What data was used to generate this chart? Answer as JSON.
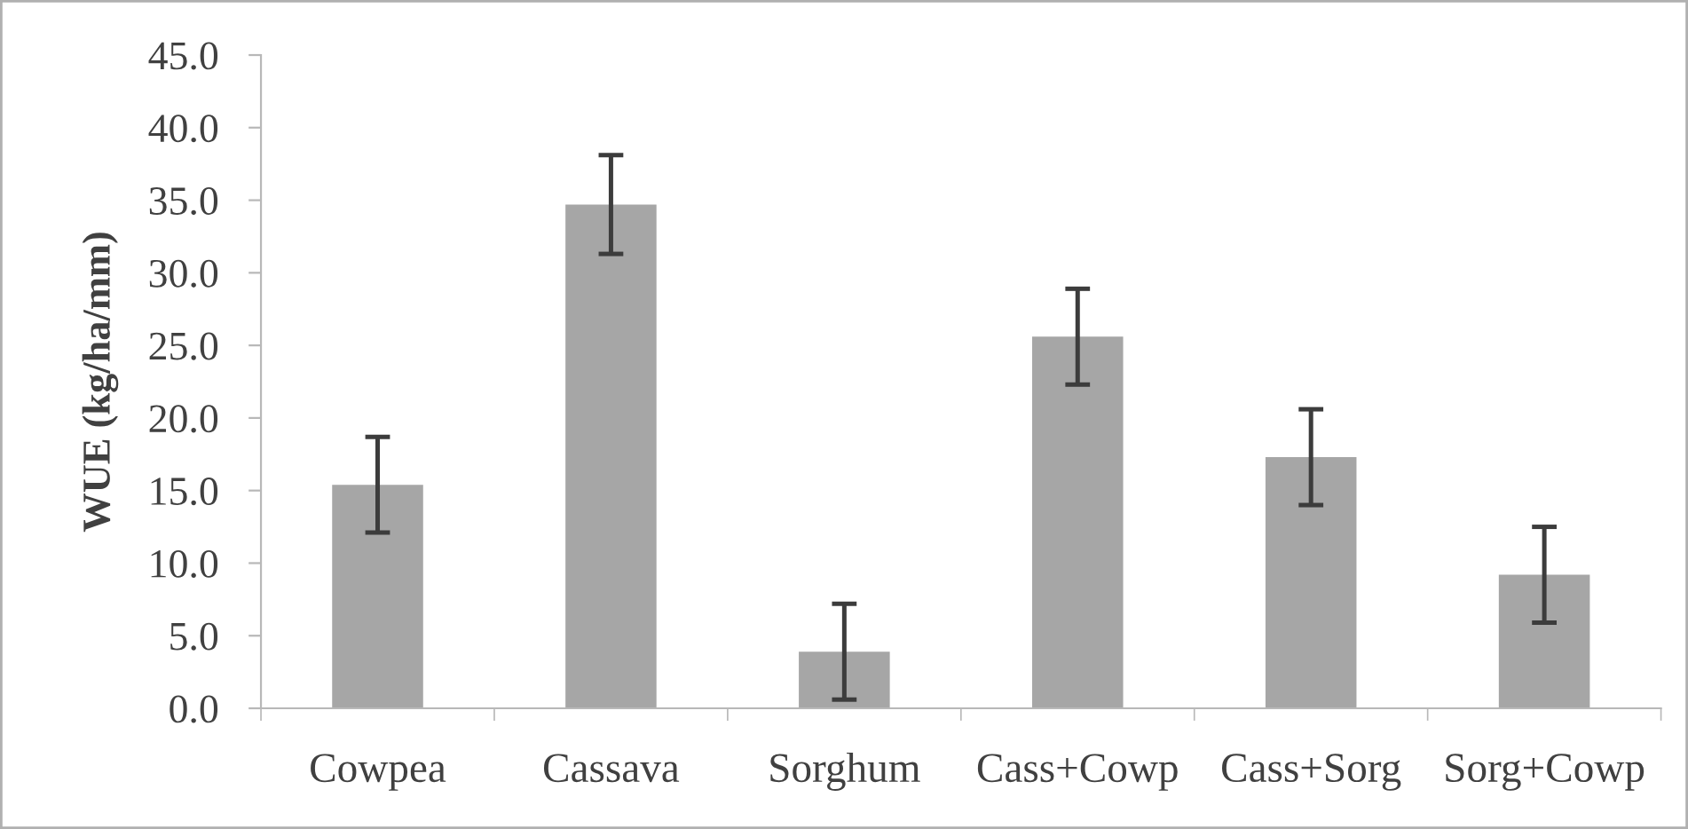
{
  "chart_data": {
    "type": "bar",
    "ylabel": "WUE (kg/ha/mm)",
    "categories": [
      "Cowpea",
      "Cassava",
      "Sorghum",
      "Cass+Cowp",
      "Cass+Sorg",
      "Sorg+Cowp"
    ],
    "values": [
      15.4,
      34.7,
      3.9,
      25.6,
      17.3,
      9.2
    ],
    "errors": [
      3.3,
      3.4,
      3.3,
      3.3,
      3.3,
      3.3
    ],
    "color": "#a6a6a6",
    "ylim": [
      0,
      45
    ],
    "yticks": [
      {
        "value": 0,
        "label": "0.0"
      },
      {
        "value": 5,
        "label": "5.0"
      },
      {
        "value": 10,
        "label": "10.0"
      },
      {
        "value": 15,
        "label": "15.0"
      },
      {
        "value": 20,
        "label": "20.0"
      },
      {
        "value": 25,
        "label": "25.0"
      },
      {
        "value": 30,
        "label": "30.0"
      },
      {
        "value": 35,
        "label": "35.0"
      },
      {
        "value": 40,
        "label": "40.0"
      },
      {
        "value": 45,
        "label": "45.0"
      }
    ],
    "grid": false,
    "legend": false
  }
}
